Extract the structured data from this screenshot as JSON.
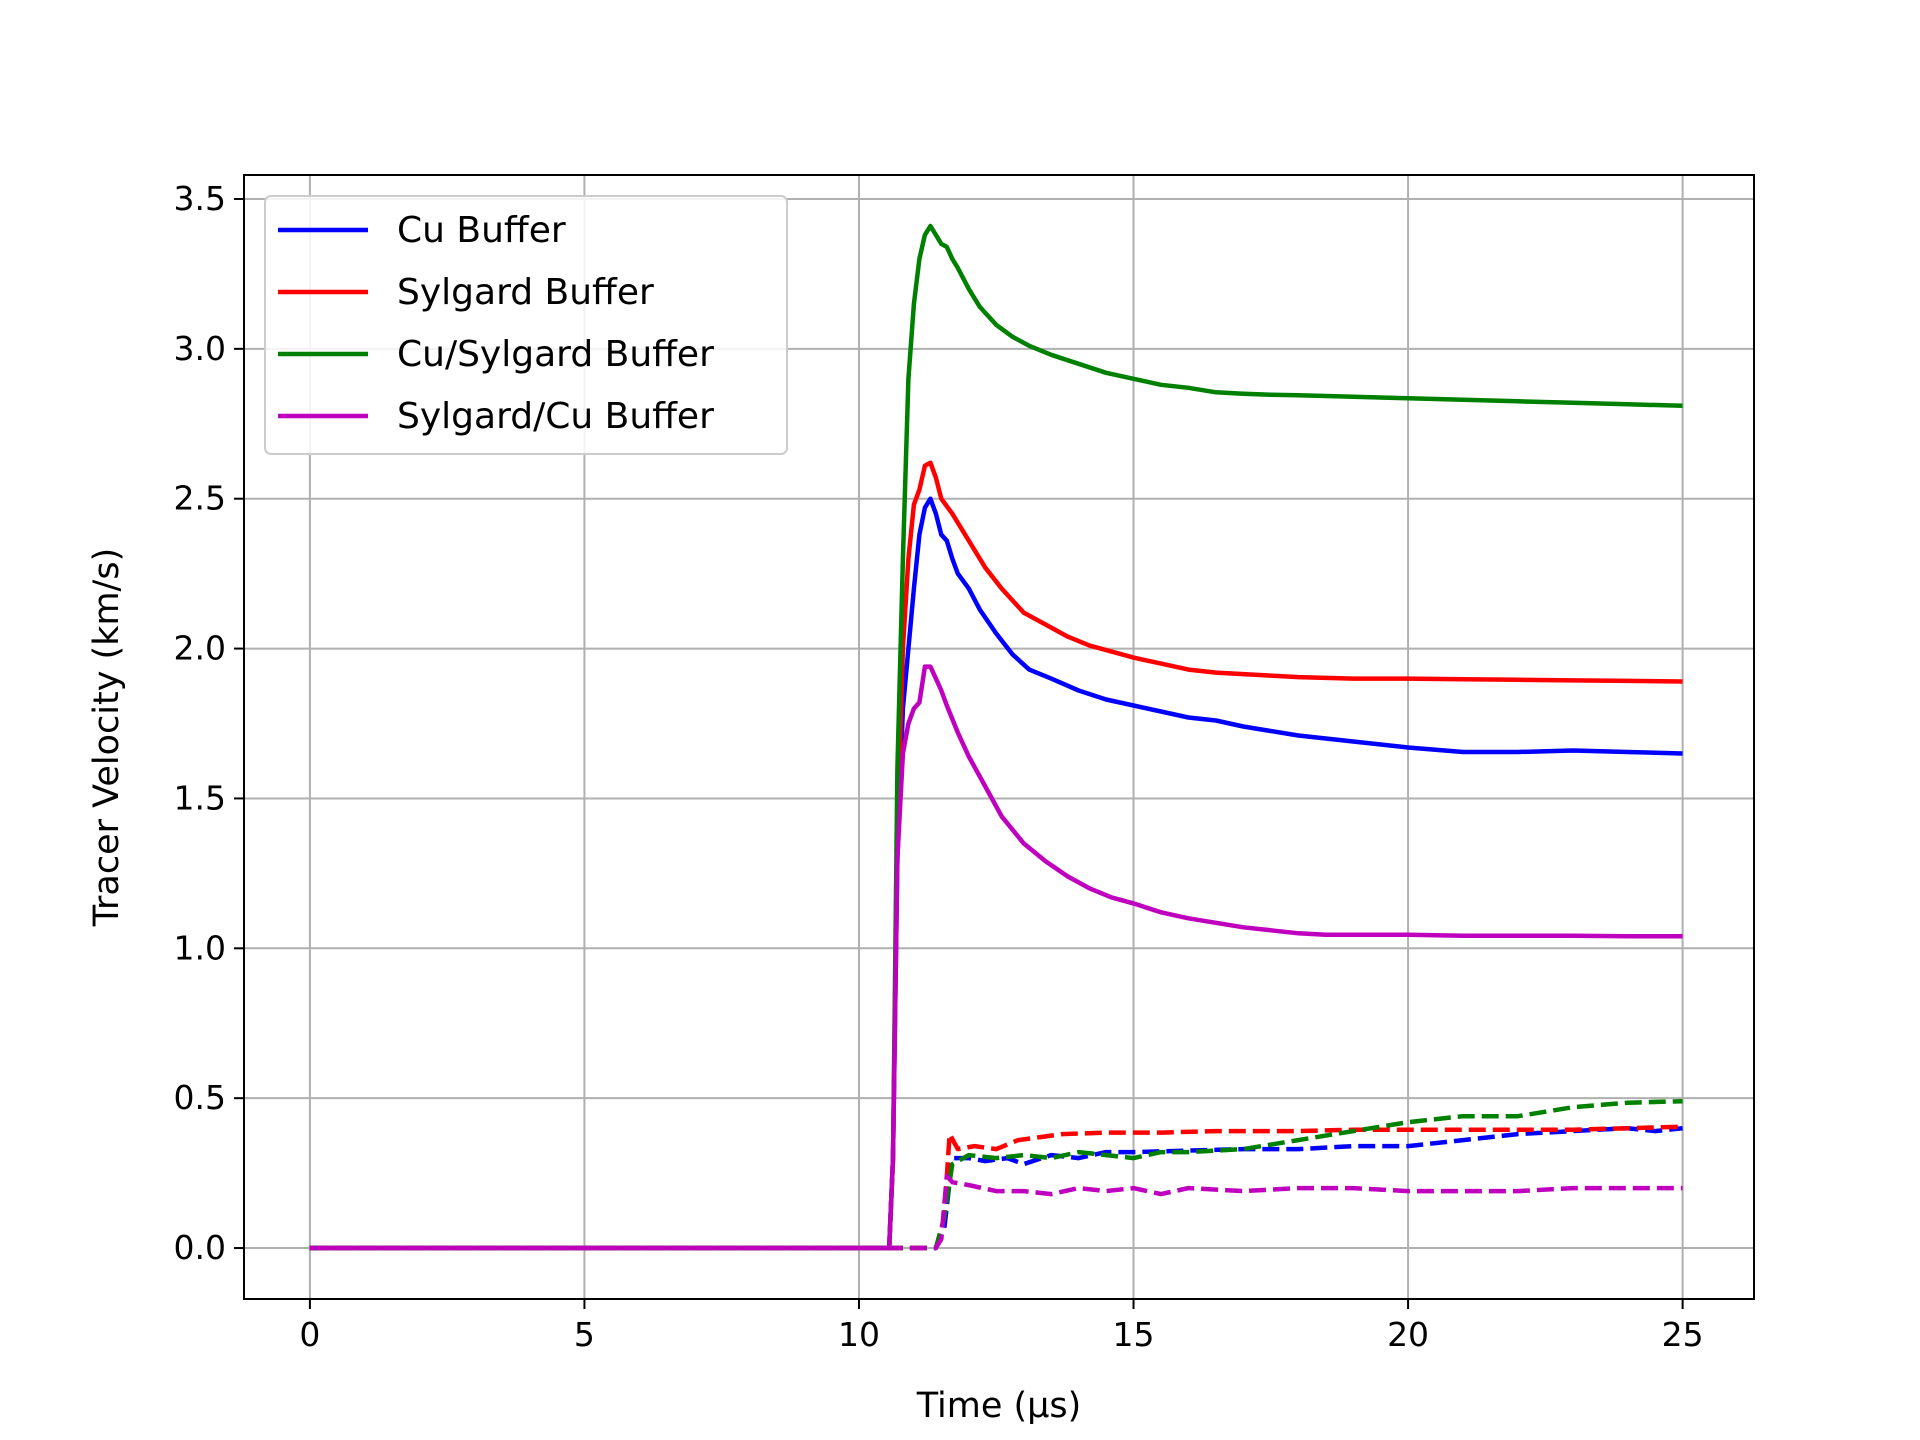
{
  "chart_data": {
    "type": "line",
    "xlabel": "Time (μs)",
    "ylabel": "Tracer Velocity (km/s)",
    "xlim": [
      -1.2,
      26.3
    ],
    "ylim": [
      -0.17,
      3.58
    ],
    "xticks": [
      0,
      5,
      10,
      15,
      20,
      25
    ],
    "yticks": [
      0.0,
      0.5,
      1.0,
      1.5,
      2.0,
      2.5,
      3.0,
      3.5
    ],
    "xtick_labels": [
      "0",
      "5",
      "10",
      "15",
      "20",
      "25"
    ],
    "ytick_labels": [
      "0.0",
      "0.5",
      "1.0",
      "1.5",
      "2.0",
      "2.5",
      "3.0",
      "3.5"
    ],
    "grid": true,
    "legend_position": "top-left",
    "series": [
      {
        "name": "Cu Buffer",
        "color": "#0000ff",
        "style": "solid",
        "x": [
          0,
          10.55,
          10.62,
          10.7,
          10.8,
          10.9,
          11.0,
          11.1,
          11.2,
          11.3,
          11.4,
          11.5,
          11.6,
          11.7,
          11.8,
          12.0,
          12.2,
          12.5,
          12.8,
          13.1,
          13.5,
          14.0,
          14.5,
          15.0,
          15.5,
          16.0,
          16.5,
          17.0,
          18.0,
          19.0,
          20.0,
          21.0,
          22.0,
          23.0,
          24.0,
          25.0
        ],
        "y": [
          0,
          0,
          0.3,
          1.3,
          1.8,
          2.0,
          2.2,
          2.38,
          2.47,
          2.5,
          2.45,
          2.38,
          2.36,
          2.3,
          2.25,
          2.2,
          2.13,
          2.05,
          1.98,
          1.93,
          1.9,
          1.86,
          1.83,
          1.81,
          1.79,
          1.77,
          1.76,
          1.74,
          1.71,
          1.69,
          1.67,
          1.655,
          1.655,
          1.66,
          1.655,
          1.65
        ]
      },
      {
        "name": "Sylgard Buffer",
        "color": "#ff0000",
        "style": "solid",
        "x": [
          0,
          10.55,
          10.62,
          10.7,
          10.8,
          10.9,
          11.0,
          11.1,
          11.2,
          11.3,
          11.4,
          11.5,
          11.7,
          12.0,
          12.3,
          12.6,
          13.0,
          13.4,
          13.8,
          14.2,
          14.6,
          15.0,
          15.5,
          16.0,
          16.5,
          17.0,
          17.5,
          18.0,
          19.0,
          20.0,
          21.0,
          22.0,
          23.0,
          24.0,
          25.0
        ],
        "y": [
          0,
          0,
          0.3,
          1.4,
          2.0,
          2.3,
          2.48,
          2.53,
          2.61,
          2.62,
          2.57,
          2.5,
          2.45,
          2.36,
          2.27,
          2.2,
          2.12,
          2.08,
          2.04,
          2.01,
          1.99,
          1.97,
          1.95,
          1.93,
          1.92,
          1.915,
          1.91,
          1.905,
          1.9,
          1.9,
          1.898,
          1.896,
          1.894,
          1.892,
          1.89
        ]
      },
      {
        "name": "Cu/Sylgard Buffer",
        "color": "#008000",
        "style": "solid",
        "x": [
          0,
          10.55,
          10.62,
          10.7,
          10.8,
          10.9,
          11.0,
          11.1,
          11.2,
          11.3,
          11.4,
          11.5,
          11.6,
          11.7,
          11.8,
          12.0,
          12.2,
          12.5,
          12.8,
          13.1,
          13.5,
          14.0,
          14.5,
          15.0,
          15.5,
          16.0,
          16.5,
          17.0,
          17.5,
          18.0,
          19.0,
          20.0,
          21.0,
          22.0,
          23.0,
          24.0,
          25.0
        ],
        "y": [
          0,
          0,
          0.3,
          1.6,
          2.3,
          2.9,
          3.15,
          3.3,
          3.38,
          3.41,
          3.38,
          3.35,
          3.34,
          3.3,
          3.27,
          3.2,
          3.14,
          3.08,
          3.04,
          3.01,
          2.98,
          2.95,
          2.92,
          2.9,
          2.88,
          2.87,
          2.855,
          2.85,
          2.847,
          2.845,
          2.84,
          2.835,
          2.83,
          2.825,
          2.82,
          2.815,
          2.81
        ]
      },
      {
        "name": "Sylgard/Cu Buffer",
        "color": "#bf00bf",
        "style": "solid",
        "x": [
          0,
          10.55,
          10.62,
          10.7,
          10.8,
          10.9,
          11.0,
          11.1,
          11.2,
          11.3,
          11.4,
          11.5,
          11.6,
          11.8,
          12.0,
          12.3,
          12.6,
          13.0,
          13.4,
          13.8,
          14.2,
          14.6,
          15.0,
          15.5,
          16.0,
          16.5,
          17.0,
          17.5,
          18.0,
          18.5,
          19.0,
          20.0,
          21.0,
          22.0,
          23.0,
          24.0,
          25.0
        ],
        "y": [
          0,
          0,
          0.3,
          1.3,
          1.65,
          1.75,
          1.8,
          1.82,
          1.94,
          1.94,
          1.9,
          1.86,
          1.81,
          1.72,
          1.64,
          1.54,
          1.44,
          1.35,
          1.29,
          1.24,
          1.2,
          1.17,
          1.15,
          1.12,
          1.1,
          1.085,
          1.07,
          1.06,
          1.05,
          1.045,
          1.045,
          1.045,
          1.042,
          1.042,
          1.042,
          1.04,
          1.04
        ]
      },
      {
        "color": "#0000ff",
        "style": "dashed",
        "x": [
          0,
          11.4,
          11.55,
          11.7,
          12.0,
          12.3,
          12.7,
          13.0,
          13.5,
          14.0,
          14.5,
          15.0,
          16.0,
          17.0,
          18.0,
          19.0,
          20.0,
          21.0,
          22.0,
          23.0,
          24.0,
          24.5,
          25.0
        ],
        "y": [
          0,
          0,
          0.06,
          0.3,
          0.3,
          0.29,
          0.3,
          0.28,
          0.31,
          0.3,
          0.32,
          0.32,
          0.325,
          0.33,
          0.33,
          0.34,
          0.34,
          0.36,
          0.38,
          0.39,
          0.4,
          0.39,
          0.4
        ]
      },
      {
        "color": "#ff0000",
        "style": "dashed",
        "x": [
          0,
          11.4,
          11.55,
          11.65,
          11.8,
          12.1,
          12.5,
          12.9,
          13.3,
          13.7,
          14.5,
          15.5,
          16.5,
          18.0,
          19.0,
          20.0,
          21.0,
          22.0,
          23.0,
          24.0,
          25.0
        ],
        "y": [
          0,
          0,
          0.1,
          0.38,
          0.33,
          0.34,
          0.33,
          0.36,
          0.37,
          0.38,
          0.385,
          0.385,
          0.39,
          0.39,
          0.395,
          0.395,
          0.395,
          0.395,
          0.395,
          0.4,
          0.405
        ]
      },
      {
        "color": "#008000",
        "style": "dashed",
        "x": [
          0,
          11.4,
          11.55,
          11.7,
          12.0,
          12.5,
          13.0,
          13.5,
          14.0,
          14.5,
          15.0,
          15.5,
          16.0,
          17.0,
          18.0,
          19.0,
          20.0,
          21.0,
          22.0,
          23.0,
          24.0,
          25.0
        ],
        "y": [
          0,
          0,
          0.1,
          0.28,
          0.31,
          0.3,
          0.31,
          0.3,
          0.32,
          0.31,
          0.3,
          0.32,
          0.32,
          0.33,
          0.36,
          0.39,
          0.42,
          0.44,
          0.44,
          0.47,
          0.485,
          0.49
        ]
      },
      {
        "color": "#bf00bf",
        "style": "dashed",
        "x": [
          0,
          11.4,
          11.5,
          11.6,
          11.7,
          12.0,
          12.5,
          13.0,
          13.5,
          14.0,
          14.5,
          15.0,
          15.5,
          16.0,
          17.0,
          18.0,
          19.0,
          20.0,
          21.0,
          22.0,
          23.0,
          24.0,
          25.0
        ],
        "y": [
          0,
          0,
          0.03,
          0.24,
          0.22,
          0.21,
          0.19,
          0.19,
          0.18,
          0.2,
          0.19,
          0.2,
          0.18,
          0.2,
          0.19,
          0.2,
          0.2,
          0.19,
          0.19,
          0.19,
          0.2,
          0.2,
          0.2
        ]
      }
    ]
  }
}
